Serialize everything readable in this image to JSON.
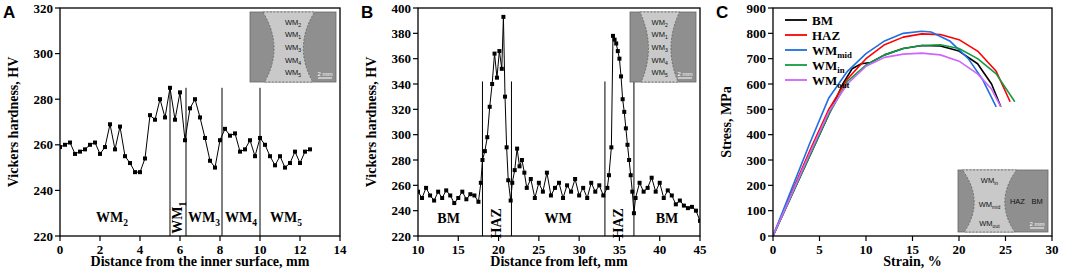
{
  "chart_data": [
    {
      "type": "line",
      "panel": "A",
      "x_label": "Distance from the inner surface, mm",
      "y_label": "Vickers hardness, HV",
      "xlim": [
        0,
        14
      ],
      "ylim": [
        220,
        320
      ],
      "xticks": [
        0,
        2,
        4,
        6,
        8,
        10,
        12,
        14
      ],
      "yticks": [
        220,
        240,
        260,
        280,
        300,
        320
      ],
      "series": [
        {
          "color": "#000000",
          "marker": "square",
          "x": [
            0,
            0.25,
            0.5,
            0.75,
            1,
            1.25,
            1.5,
            1.75,
            2,
            2.25,
            2.5,
            2.75,
            3,
            3.25,
            3.5,
            3.75,
            4,
            4.25,
            4.5,
            4.75,
            5,
            5.25,
            5.5,
            5.75,
            6,
            6.25,
            6.5,
            6.75,
            7,
            7.25,
            7.5,
            7.75,
            8,
            8.25,
            8.5,
            8.75,
            9,
            9.25,
            9.5,
            9.75,
            10,
            10.25,
            10.5,
            10.75,
            11,
            11.25,
            11.5,
            11.75,
            12,
            12.25,
            12.5
          ],
          "values": [
            259,
            260,
            261,
            256,
            257,
            258,
            260,
            261,
            256,
            259,
            269,
            258,
            268,
            255,
            252,
            248,
            248,
            254,
            273,
            271,
            280,
            272,
            285,
            271,
            283,
            262,
            276,
            280,
            272,
            263,
            253,
            250,
            262,
            267,
            264,
            265,
            257,
            258,
            262,
            255,
            263,
            260,
            255,
            251,
            255,
            250,
            252,
            257,
            252,
            257,
            258
          ]
        }
      ],
      "dividers": [
        5.5,
        6.3,
        8.1,
        10.0
      ],
      "divider_top": 285,
      "regions": [
        {
          "label": "WM2",
          "x": 2.6,
          "y": 226
        },
        {
          "label": "WM1",
          "x": 5.9,
          "y": 228
        },
        {
          "label": "WM3",
          "x": 7.2,
          "y": 226
        },
        {
          "label": "WM4",
          "x": 9.05,
          "y": 226
        },
        {
          "label": "WM5",
          "x": 11.3,
          "y": 226
        }
      ],
      "inset": {
        "labels": [
          "WM2",
          "WM1",
          "WM3",
          "WM4",
          "WM5"
        ],
        "scale_bar": "2 mm"
      }
    },
    {
      "type": "line",
      "panel": "B",
      "x_label": "Distance from left, mm",
      "y_label": "Vickers hardness, HV",
      "xlim": [
        10,
        45
      ],
      "ylim": [
        220,
        400
      ],
      "xticks": [
        10,
        15,
        20,
        25,
        30,
        35,
        40,
        45
      ],
      "yticks": [
        220,
        240,
        260,
        280,
        300,
        320,
        340,
        360,
        380,
        400
      ],
      "series": [
        {
          "color": "#000000",
          "marker": "square",
          "x": [
            10,
            10.5,
            11,
            11.5,
            12,
            12.5,
            13,
            13.5,
            14,
            14.5,
            15,
            15.5,
            16,
            16.5,
            17,
            17.5,
            17.8,
            18,
            18.3,
            18.6,
            18.9,
            19.2,
            19.5,
            19.8,
            20.1,
            20.4,
            20.6,
            20.8,
            21,
            21.2,
            21.5,
            21.7,
            22,
            22.3,
            22.6,
            22.9,
            23.2,
            23.5,
            24,
            24.5,
            25,
            25.5,
            26,
            26.5,
            27,
            27.5,
            28,
            28.5,
            29,
            29.5,
            30,
            30.5,
            31,
            31.5,
            32,
            32.5,
            33,
            33.5,
            33.7,
            34,
            34.2,
            34.4,
            34.6,
            34.8,
            35,
            35.2,
            35.4,
            35.6,
            35.8,
            36,
            36.2,
            36.4,
            36.6,
            36.8,
            37,
            37.5,
            38,
            38.5,
            39,
            39.5,
            40,
            40.5,
            41,
            41.5,
            42,
            42.5,
            43,
            43.5,
            44,
            44.5,
            45
          ],
          "values": [
            255,
            250,
            258,
            252,
            248,
            255,
            250,
            256,
            252,
            246,
            250,
            255,
            249,
            253,
            252,
            247,
            262,
            280,
            287,
            298,
            322,
            340,
            364,
            345,
            366,
            352,
            393,
            330,
            290,
            264,
            248,
            262,
            272,
            289,
            275,
            280,
            270,
            258,
            265,
            250,
            262,
            255,
            270,
            252,
            258,
            262,
            250,
            260,
            255,
            265,
            252,
            258,
            250,
            262,
            255,
            260,
            252,
            258,
            268,
            290,
            378,
            375,
            372,
            366,
            360,
            346,
            328,
            318,
            305,
            292,
            280,
            268,
            255,
            238,
            250,
            262,
            255,
            258,
            266,
            255,
            262,
            250,
            256,
            252,
            245,
            248,
            244,
            242,
            243,
            240,
            232
          ]
        }
      ],
      "dividers": [
        18.0,
        21.6,
        33.2,
        36.8
      ],
      "divider_top": 342,
      "regions": [
        {
          "label": "BM",
          "x": 13.8,
          "y": 230
        },
        {
          "label": "HAZ",
          "x": 19.8,
          "y": 230
        },
        {
          "label": "WM",
          "x": 27.4,
          "y": 230
        },
        {
          "label": "HAZ",
          "x": 35.0,
          "y": 230
        },
        {
          "label": "BM",
          "x": 40.9,
          "y": 230
        }
      ],
      "inset": {
        "labels": [
          "WM2",
          "WM1",
          "WM3",
          "WM4",
          "WM5"
        ],
        "scale_bar": "2 mm"
      }
    },
    {
      "type": "line",
      "panel": "C",
      "x_label": "Strain, %",
      "y_label": "Stress, MPa",
      "xlim": [
        0,
        30
      ],
      "ylim": [
        0,
        900
      ],
      "xticks": [
        0,
        5,
        10,
        15,
        20,
        25,
        30
      ],
      "yticks": [
        0,
        100,
        200,
        300,
        400,
        500,
        600,
        700,
        800,
        900
      ],
      "legend": "upper left",
      "series": [
        {
          "name": "BM",
          "color": "#000000",
          "x": [
            0,
            2,
            4,
            6,
            7.5,
            8.5,
            9.5,
            10.5,
            12,
            14,
            16,
            18,
            20,
            22,
            23.5,
            24.5
          ],
          "values": [
            0,
            160,
            320,
            480,
            600,
            660,
            680,
            685,
            715,
            740,
            752,
            750,
            730,
            680,
            600,
            510
          ]
        },
        {
          "name": "HAZ",
          "color": "#ff0000",
          "x": [
            0,
            2,
            4,
            6,
            8,
            10,
            12,
            14,
            16,
            18,
            20,
            22,
            24,
            25.5
          ],
          "values": [
            0,
            170,
            340,
            500,
            620,
            700,
            755,
            785,
            798,
            795,
            775,
            730,
            650,
            530
          ]
        },
        {
          "name": "WMmid",
          "color": "#1f6fe0",
          "x": [
            0,
            2,
            4,
            6,
            8,
            10,
            12,
            14,
            16,
            17,
            19,
            21,
            22.5,
            24
          ],
          "values": [
            0,
            185,
            370,
            545,
            650,
            720,
            770,
            800,
            808,
            805,
            770,
            700,
            620,
            510
          ]
        },
        {
          "name": "WMin",
          "color": "#139a43",
          "x": [
            0,
            2,
            4,
            6,
            8,
            10,
            12,
            14,
            16,
            18,
            20,
            22,
            24,
            26
          ],
          "values": [
            0,
            160,
            320,
            480,
            610,
            675,
            715,
            740,
            752,
            755,
            740,
            700,
            640,
            530
          ]
        },
        {
          "name": "WMout",
          "color": "#cc66ff",
          "x": [
            0,
            2,
            4,
            6,
            8,
            10,
            12,
            14,
            16,
            18,
            20,
            22,
            23.5,
            24.5
          ],
          "values": [
            0,
            165,
            330,
            490,
            600,
            670,
            705,
            718,
            722,
            715,
            690,
            640,
            580,
            510
          ]
        }
      ],
      "inset": {
        "labels": [
          "WMin",
          "HAZ",
          "BM",
          "WMmid",
          "WMout"
        ],
        "scale_bar": "2 mm"
      }
    }
  ]
}
